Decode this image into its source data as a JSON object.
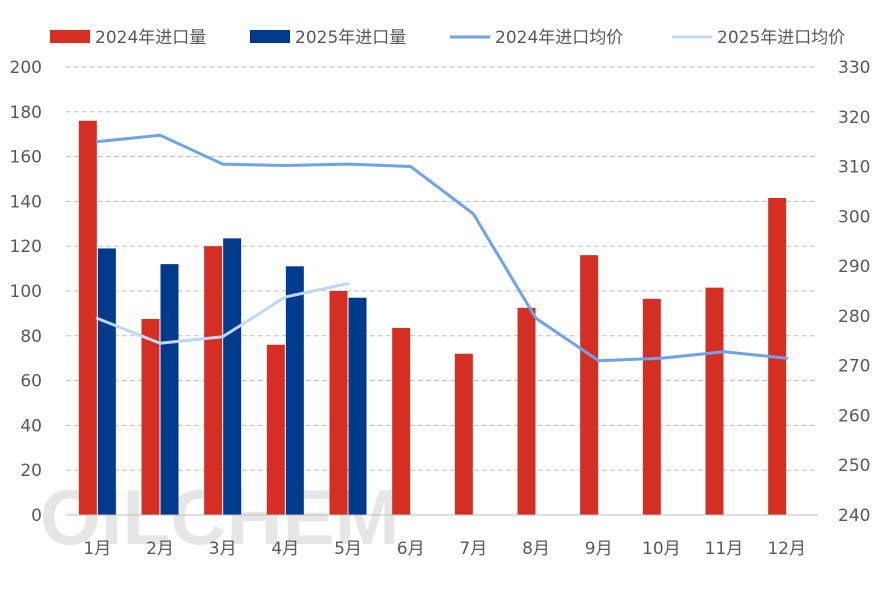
{
  "chart_data": {
    "type": "bar",
    "title": "",
    "watermark": "OILCHEM",
    "categories": [
      "1月",
      "2月",
      "3月",
      "4月",
      "5月",
      "6月",
      "7月",
      "8月",
      "9月",
      "10月",
      "11月",
      "12月"
    ],
    "y_left": {
      "min": 0,
      "max": 200,
      "step": 20,
      "ticks": [
        "0",
        "20",
        "40",
        "60",
        "80",
        "100",
        "120",
        "140",
        "160",
        "180",
        "200"
      ]
    },
    "y_right": {
      "min": 240,
      "max": 330,
      "step": 10,
      "ticks": [
        "240",
        "250",
        "260",
        "270",
        "280",
        "290",
        "300",
        "310",
        "320",
        "330"
      ]
    },
    "grid": true,
    "legend_position": "top",
    "series": [
      {
        "name": "2024年进口量",
        "kind": "bar",
        "axis": "left",
        "color": "#d42f22",
        "values": [
          176,
          87.5,
          120,
          76,
          100,
          83.5,
          72,
          92.5,
          116,
          96.5,
          101.5,
          141.5
        ]
      },
      {
        "name": "2025年进口量",
        "kind": "bar",
        "axis": "left",
        "color": "#003a8c",
        "values": [
          119,
          112,
          123.5,
          111,
          97,
          null,
          null,
          null,
          null,
          null,
          null,
          null
        ]
      },
      {
        "name": "2024年进口均价",
        "kind": "line",
        "axis": "right",
        "color": "#6fa3e8",
        "values": [
          315,
          316.3,
          310.5,
          310.2,
          310.5,
          310,
          300.5,
          279.5,
          271,
          271.5,
          272.8,
          271.5
        ]
      },
      {
        "name": "2025年进口均价",
        "kind": "line",
        "axis": "right",
        "color": "#bdd7f5",
        "values": [
          279.5,
          274.5,
          275.8,
          283.8,
          286.5,
          null,
          null,
          null,
          null,
          null,
          null,
          null
        ]
      }
    ]
  }
}
